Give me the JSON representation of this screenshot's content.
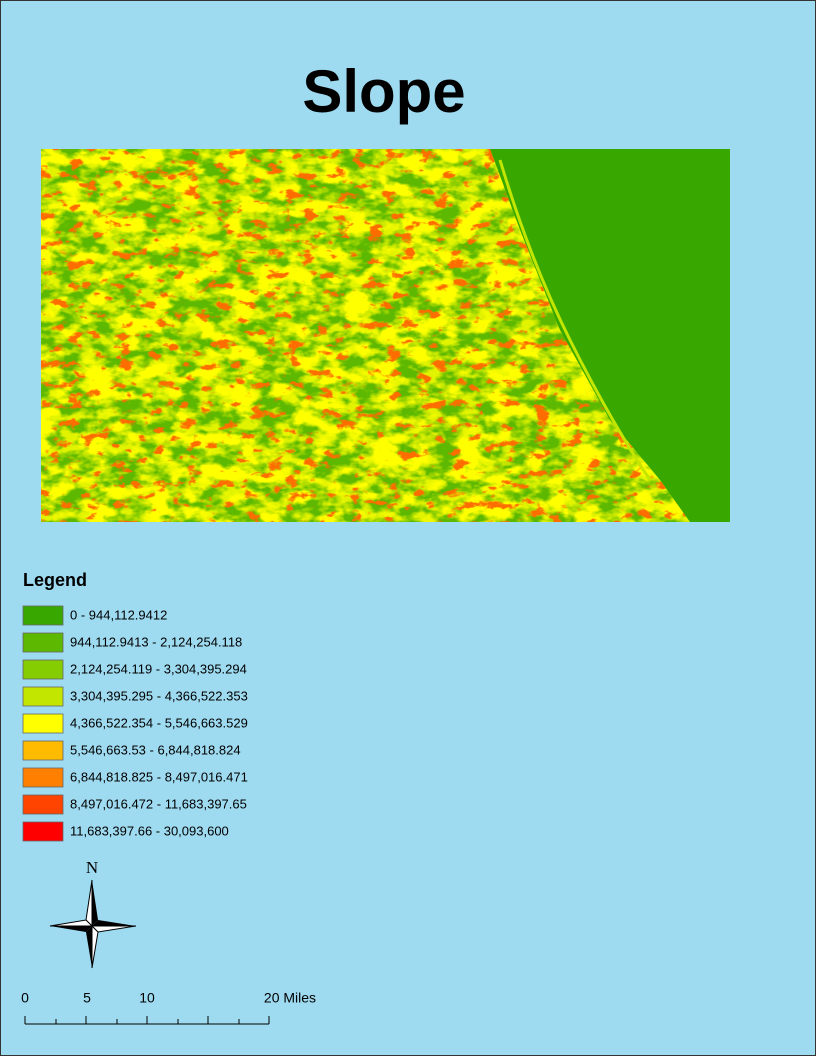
{
  "title": "Slope",
  "legend": {
    "title": "Legend",
    "items": [
      {
        "label": "0 - 944,112.9412",
        "color": "#38a800"
      },
      {
        "label": "944,112.9413 - 2,124,254.118",
        "color": "#5cb800"
      },
      {
        "label": "2,124,254.119 - 3,304,395.294",
        "color": "#85cc00"
      },
      {
        "label": "3,304,395.295 - 4,366,522.353",
        "color": "#c2e600"
      },
      {
        "label": "4,366,522.354 - 5,546,663.529",
        "color": "#ffff00"
      },
      {
        "label": "5,546,663.53 - 6,844,818.824",
        "color": "#ffbb00"
      },
      {
        "label": "6,844,818.825 - 8,497,016.471",
        "color": "#ff8000"
      },
      {
        "label": "8,497,016.472 - 11,683,397.65",
        "color": "#ff4400"
      },
      {
        "label": "11,683,397.66 - 30,093,600",
        "color": "#ff0000"
      }
    ]
  },
  "north_arrow": {
    "label": "N"
  },
  "scale_bar": {
    "labels": [
      "0",
      "5",
      "10",
      "20 Miles"
    ]
  }
}
